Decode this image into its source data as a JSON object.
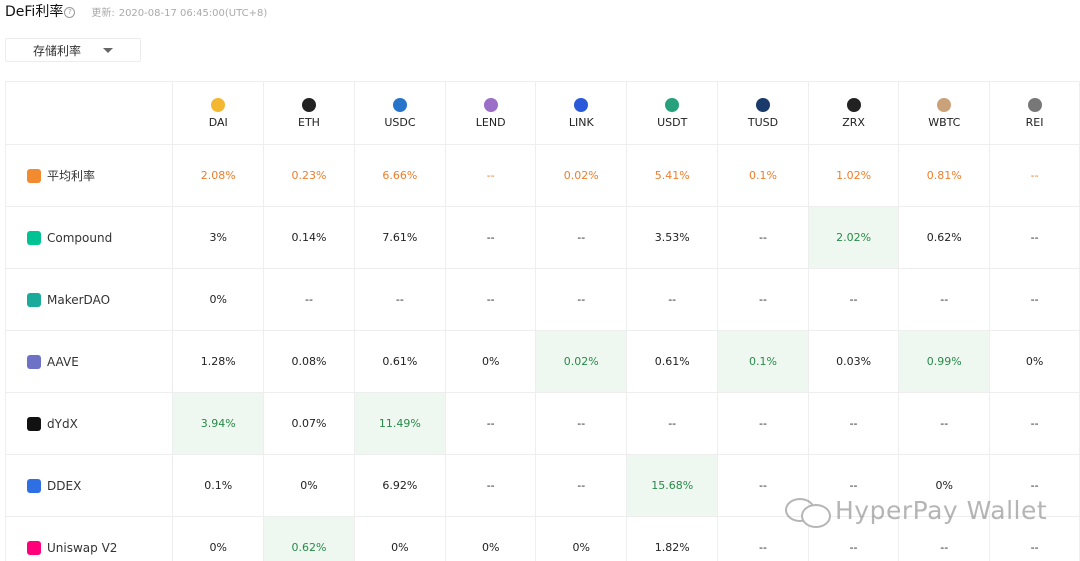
{
  "header": {
    "title": "DeFi利率",
    "help_icon": "question-circle-icon",
    "updated_label": "更新:",
    "updated_time": "2020-08-17 06:45:00(UTC+8)"
  },
  "filter": {
    "selected": "存储利率"
  },
  "columns": [
    {
      "label": "DAI",
      "icon": "dai-icon",
      "color": "#f4b731"
    },
    {
      "label": "ETH",
      "icon": "eth-icon",
      "color": "#222222"
    },
    {
      "label": "USDC",
      "icon": "usdc-icon",
      "color": "#2775ca"
    },
    {
      "label": "LEND",
      "icon": "lend-icon",
      "color": "#9b6fc8"
    },
    {
      "label": "LINK",
      "icon": "link-icon",
      "color": "#2a5ada"
    },
    {
      "label": "USDT",
      "icon": "usdt-icon",
      "color": "#26a17b"
    },
    {
      "label": "TUSD",
      "icon": "tusd-icon",
      "color": "#1a3a6b"
    },
    {
      "label": "ZRX",
      "icon": "zrx-icon",
      "color": "#222222"
    },
    {
      "label": "WBTC",
      "icon": "wbtc-icon",
      "color": "#c9a27a"
    },
    {
      "label": "REI",
      "icon": "rep-icon",
      "color": "#777777"
    }
  ],
  "rows": [
    {
      "label": "平均利率",
      "icon": "percent-icon",
      "color": "#f28a30",
      "values": [
        "2.08%",
        "0.23%",
        "6.66%",
        "--",
        "0.02%",
        "5.41%",
        "0.1%",
        "1.02%",
        "0.81%",
        "--"
      ],
      "highlight": []
    },
    {
      "label": "Compound",
      "icon": "compound-icon",
      "color": "#00c394",
      "values": [
        "3%",
        "0.14%",
        "7.61%",
        "--",
        "--",
        "3.53%",
        "--",
        "2.02%",
        "0.62%",
        "--"
      ],
      "highlight": [
        7
      ]
    },
    {
      "label": "MakerDAO",
      "icon": "maker-icon",
      "color": "#1aab9b",
      "values": [
        "0%",
        "--",
        "--",
        "--",
        "--",
        "--",
        "--",
        "--",
        "--",
        "--"
      ],
      "highlight": []
    },
    {
      "label": "AAVE",
      "icon": "aave-icon",
      "color": "#6e72c7",
      "values": [
        "1.28%",
        "0.08%",
        "0.61%",
        "0%",
        "0.02%",
        "0.61%",
        "0.1%",
        "0.03%",
        "0.99%",
        "0%"
      ],
      "highlight": [
        4,
        6,
        8
      ]
    },
    {
      "label": "dYdX",
      "icon": "dydx-icon",
      "color": "#111111",
      "values": [
        "3.94%",
        "0.07%",
        "11.49%",
        "--",
        "--",
        "--",
        "--",
        "--",
        "--",
        "--"
      ],
      "highlight": [
        0,
        2
      ]
    },
    {
      "label": "DDEX",
      "icon": "ddex-icon",
      "color": "#2f6fe4",
      "values": [
        "0.1%",
        "0%",
        "6.92%",
        "--",
        "--",
        "15.68%",
        "--",
        "--",
        "0%",
        "--"
      ],
      "highlight": [
        5
      ]
    },
    {
      "label": "Uniswap V2",
      "icon": "uniswap-icon",
      "color": "#ff007a",
      "values": [
        "0%",
        "0.62%",
        "0%",
        "0%",
        "0%",
        "1.82%",
        "--",
        "--",
        "--",
        "--"
      ],
      "highlight": [
        1
      ]
    }
  ],
  "watermark": {
    "text": "HyperPay Wallet",
    "icon": "wechat-icon"
  }
}
